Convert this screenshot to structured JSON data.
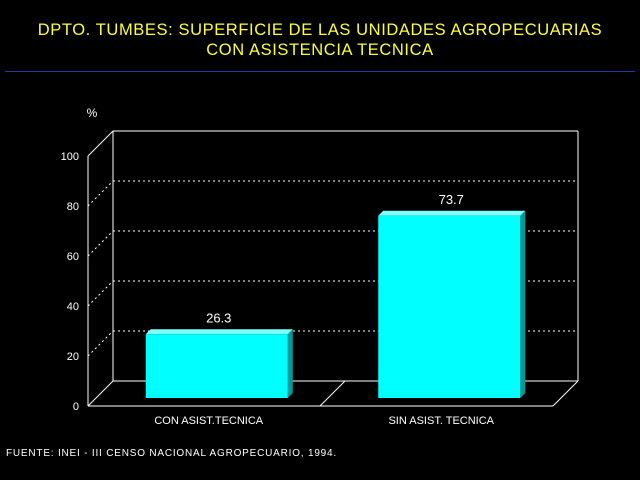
{
  "title": {
    "line1": "DPTO. TUMBES: SUPERFICIE DE LAS UNIDADES AGROPECUARIAS",
    "line2": "CON ASISTENCIA TECNICA"
  },
  "source": "FUENTE: INEI - III CENSO NACIONAL AGROPECUARIO, 1994.",
  "colors": {
    "background": "#000000",
    "title": "#ffff33",
    "title_rule": "#1d3bb0",
    "bar_face": "#00ffff",
    "bar_side": "#009c9c",
    "bar_top": "#7fffff",
    "text": "#ffffff"
  },
  "chart_data": {
    "type": "bar",
    "title": "DPTO. TUMBES: SUPERFICIE DE LAS UNIDADES AGROPECUARIAS CON ASISTENCIA TECNICA",
    "ylabel": "%",
    "xlabel": "",
    "categories": [
      "CON ASIST.TECNICA",
      "SIN ASIST. TECNICA"
    ],
    "values": [
      26.3,
      73.7
    ],
    "data_labels": [
      "26.3",
      "73.7"
    ],
    "ylim": [
      0,
      100
    ],
    "yticks": [
      0,
      20,
      40,
      60,
      80,
      100
    ],
    "grid": true,
    "legend": "none",
    "style": "3d"
  }
}
